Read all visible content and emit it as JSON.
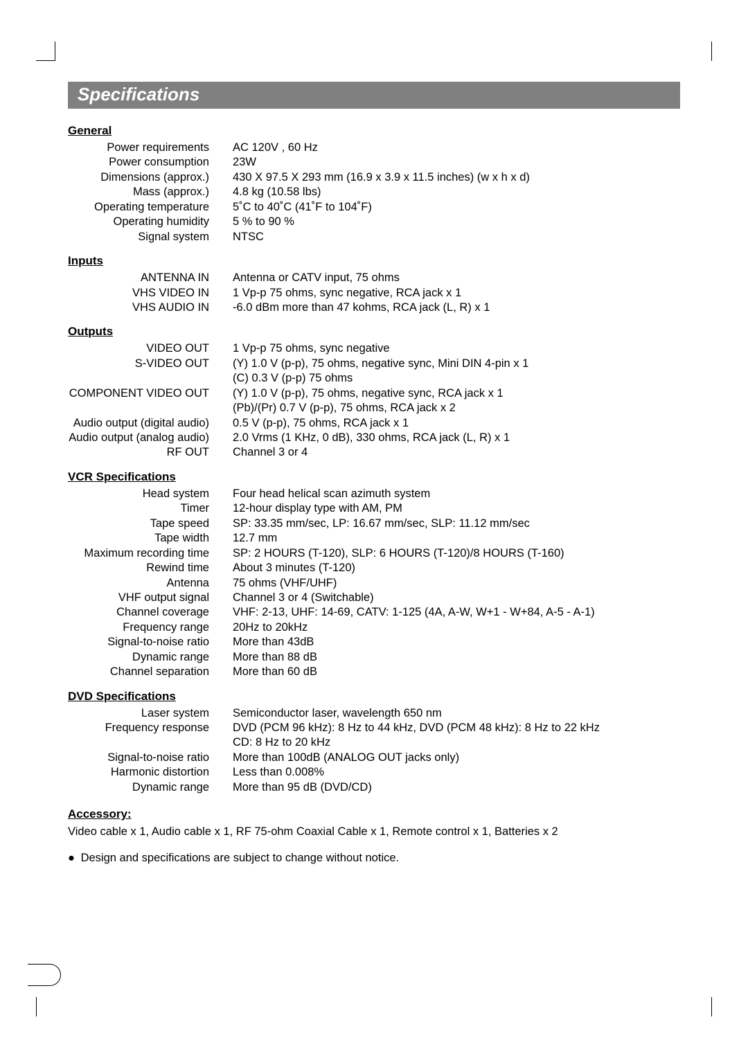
{
  "title": "Specifications",
  "sections": {
    "general": {
      "heading": "General",
      "rows": [
        {
          "label": "Power requirements",
          "value": "AC 120V , 60 Hz"
        },
        {
          "label": "Power consumption",
          "value": "23W"
        },
        {
          "label": "Dimensions (approx.)",
          "value": "430 X 97.5 X 293 mm (16.9 x 3.9 x 11.5 inches) (w x h x d)"
        },
        {
          "label": "Mass (approx.)",
          "value": "4.8 kg (10.58 lbs)"
        },
        {
          "label": "Operating temperature",
          "value": "5˚C to 40˚C (41˚F to 104˚F)"
        },
        {
          "label": "Operating humidity",
          "value": "5 % to 90 %"
        },
        {
          "label": "Signal system",
          "value": "NTSC"
        }
      ]
    },
    "inputs": {
      "heading": "Inputs",
      "rows": [
        {
          "label": "ANTENNA IN",
          "value": "Antenna or CATV input, 75 ohms"
        },
        {
          "label": "VHS VIDEO IN",
          "value": "1 Vp-p 75 ohms, sync negative, RCA jack x 1"
        },
        {
          "label": "VHS AUDIO IN",
          "value": "-6.0 dBm more than 47 kohms, RCA jack (L, R) x 1"
        }
      ]
    },
    "outputs": {
      "heading": "Outputs",
      "rows": [
        {
          "label": "VIDEO OUT",
          "value": "1 Vp-p 75 ohms, sync negative"
        },
        {
          "label": "S-VIDEO OUT",
          "value": "(Y) 1.0 V (p-p), 75 ohms, negative sync, Mini DIN 4-pin x 1"
        },
        {
          "label": "",
          "value": "(C) 0.3 V (p-p) 75 ohms"
        },
        {
          "label": "COMPONENT VIDEO OUT",
          "value": "(Y) 1.0 V (p-p), 75 ohms, negative sync, RCA jack x 1"
        },
        {
          "label": "",
          "value": "(Pb)/(Pr) 0.7 V (p-p), 75 ohms, RCA jack x 2"
        },
        {
          "label": "Audio output (digital audio)",
          "value": "0.5 V (p-p), 75 ohms, RCA jack x 1"
        },
        {
          "label": "Audio output (analog audio)",
          "value": "2.0 Vrms (1 KHz, 0 dB), 330 ohms, RCA jack (L, R) x 1"
        },
        {
          "label": "RF OUT",
          "value": "Channel 3 or 4"
        }
      ]
    },
    "vcr": {
      "heading": "VCR Specifications",
      "rows": [
        {
          "label": "Head system",
          "value": "Four head helical scan azimuth system"
        },
        {
          "label": "Timer",
          "value": "12-hour display type with AM, PM"
        },
        {
          "label": "Tape speed",
          "value": "SP: 33.35 mm/sec, LP: 16.67 mm/sec, SLP: 11.12 mm/sec"
        },
        {
          "label": "Tape width",
          "value": "12.7 mm"
        },
        {
          "label": "Maximum recording time",
          "value": "SP: 2 HOURS (T-120), SLP: 6 HOURS (T-120)/8 HOURS (T-160)"
        },
        {
          "label": "Rewind time",
          "value": "About 3 minutes (T-120)"
        },
        {
          "label": "Antenna",
          "value": "75 ohms (VHF/UHF)"
        },
        {
          "label": "VHF output signal",
          "value": "Channel 3 or 4 (Switchable)"
        },
        {
          "label": "Channel coverage",
          "value": "VHF: 2-13, UHF: 14-69, CATV: 1-125 (4A, A-W, W+1 - W+84, A-5 - A-1)"
        },
        {
          "label": "Frequency range",
          "value": "20Hz to 20kHz"
        },
        {
          "label": "Signal-to-noise ratio",
          "value": "More than 43dB"
        },
        {
          "label": "Dynamic range",
          "value": "More than 88 dB"
        },
        {
          "label": "Channel separation",
          "value": "More than 60 dB"
        }
      ]
    },
    "dvd": {
      "heading": "DVD Specifications",
      "rows": [
        {
          "label": "Laser system",
          "value": "Semiconductor laser, wavelength 650 nm"
        },
        {
          "label": "Frequency response",
          "value": "DVD (PCM 96 kHz): 8 Hz to 44 kHz, DVD (PCM 48 kHz): 8 Hz to 22 kHz"
        },
        {
          "label": "",
          "value": "CD: 8 Hz to 20 kHz"
        },
        {
          "label": "Signal-to-noise ratio",
          "value": "More than 100dB (ANALOG OUT jacks only)"
        },
        {
          "label": "Harmonic distortion",
          "value": "Less than 0.008%"
        },
        {
          "label": "Dynamic range",
          "value": "More than 95 dB (DVD/CD)"
        }
      ]
    }
  },
  "accessory": {
    "heading": "Accessory:",
    "text": "Video cable x 1, Audio cable x 1, RF 75-ohm Coaxial Cable x 1, Remote control x 1, Batteries x 2"
  },
  "note": "Design and specifications are subject to change without notice."
}
